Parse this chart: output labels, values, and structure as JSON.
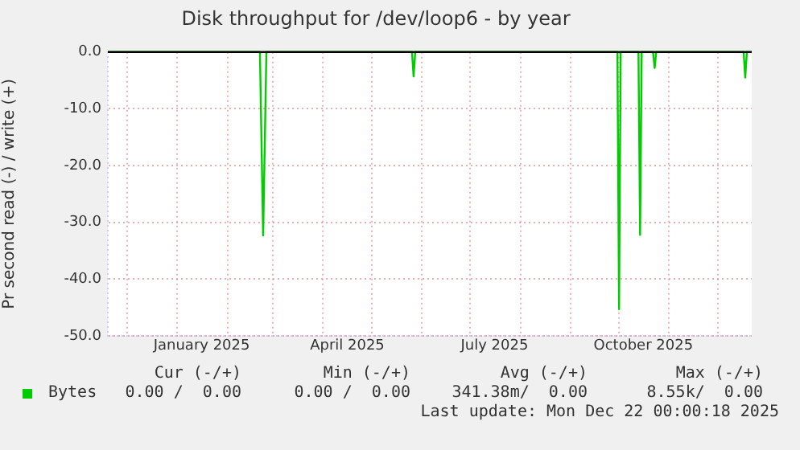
{
  "chart_data": {
    "type": "line",
    "title": "Disk throughput for /dev/loop6 - by year",
    "ylabel": "Pr second read (-) / write (+)",
    "xlim": [
      "2024-11-19",
      "2025-12-22"
    ],
    "ylim": [
      -50,
      0
    ],
    "yticks": [
      {
        "value": -50,
        "label": "-50.0"
      },
      {
        "value": -40,
        "label": "-40.0"
      },
      {
        "value": -30,
        "label": "-30.0"
      },
      {
        "value": -20,
        "label": "-20.0"
      },
      {
        "value": -10,
        "label": "-10.0"
      },
      {
        "value": 0,
        "label": "0.0"
      }
    ],
    "xticks": [
      {
        "value": "2024-12-01",
        "label": null
      },
      {
        "value": "2025-01-01",
        "label": null
      },
      {
        "value": "2025-01-16",
        "label": "January 2025"
      },
      {
        "value": "2025-02-01",
        "label": null
      },
      {
        "value": "2025-03-01",
        "label": null
      },
      {
        "value": "2025-04-01",
        "label": null
      },
      {
        "value": "2025-04-16",
        "label": "April 2025"
      },
      {
        "value": "2025-05-01",
        "label": null
      },
      {
        "value": "2025-06-01",
        "label": null
      },
      {
        "value": "2025-07-01",
        "label": null
      },
      {
        "value": "2025-07-16",
        "label": "July 2025"
      },
      {
        "value": "2025-08-01",
        "label": null
      },
      {
        "value": "2025-09-01",
        "label": null
      },
      {
        "value": "2025-10-01",
        "label": null
      },
      {
        "value": "2025-10-16",
        "label": "October 2025"
      },
      {
        "value": "2025-11-01",
        "label": null
      },
      {
        "value": "2025-12-01",
        "label": null
      }
    ],
    "grid": true,
    "legend": "bottom left",
    "marker": "none",
    "line_style": "solid",
    "series": [
      {
        "name": "Bytes",
        "color": "#00cc00",
        "x": [
          "2024-11-19",
          "2025-02-21",
          "2025-02-23",
          "2025-02-25",
          "2025-05-26",
          "2025-05-27",
          "2025-05-28",
          "2025-09-30",
          "2025-10-01",
          "2025-10-02",
          "2025-10-13",
          "2025-10-14",
          "2025-10-15",
          "2025-10-22",
          "2025-10-23",
          "2025-10-24",
          "2025-12-17",
          "2025-12-18",
          "2025-12-19",
          "2025-12-22"
        ],
        "values": [
          0,
          0,
          -32.3,
          0,
          0,
          -4.3,
          0,
          0,
          -45.3,
          0,
          0,
          -32.2,
          0,
          0,
          -2.8,
          0,
          0,
          -4.5,
          0,
          0
        ]
      },
      {
        "color": "#000000",
        "x": [
          "2024-11-19",
          "2025-12-22"
        ],
        "values": [
          0,
          0
        ]
      }
    ],
    "annotations": [
      "Cur (-/+)",
      "Min (-/+)",
      "Avg (-/+)",
      "Max (-/+)",
      "0.00 /  0.00",
      "0.00 /  0.00",
      "341.38m/  0.00",
      "8.55k/  0.00",
      "Last update: Mon Dec 22 00:00:18 2025"
    ]
  }
}
